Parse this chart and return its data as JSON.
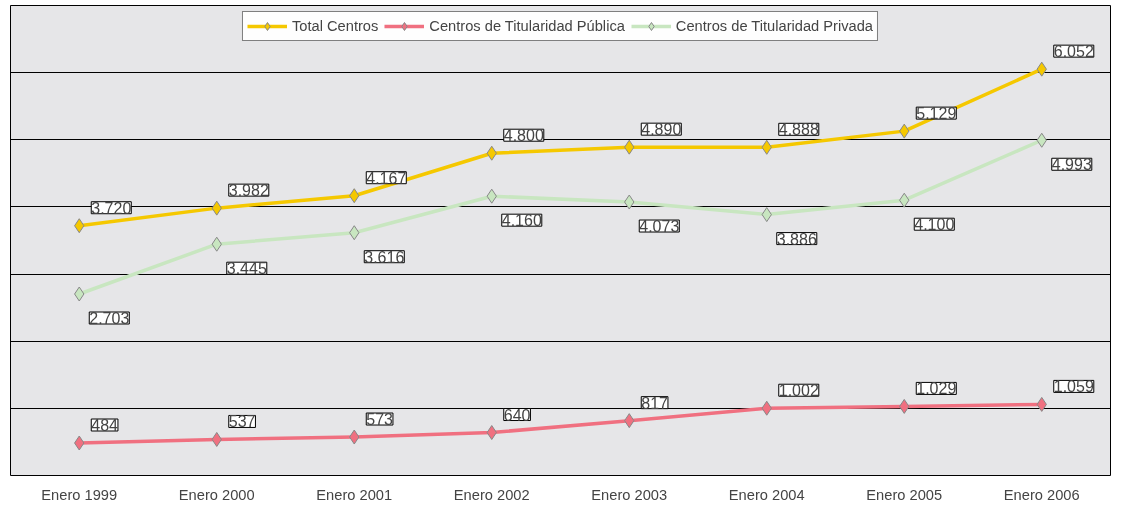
{
  "chart_data": {
    "type": "line",
    "categories": [
      "Enero 1999",
      "Enero 2000",
      "Enero 2001",
      "Enero 2002",
      "Enero 2003",
      "Enero 2004",
      "Enero 2005",
      "Enero 2006"
    ],
    "series": [
      {
        "name": "Total Centros",
        "color": "#f5c800",
        "values": [
          3720,
          3982,
          4167,
          4800,
          4890,
          4888,
          5129,
          6052
        ],
        "value_labels": [
          "3.720",
          "3.982",
          "4.167",
          "4.800",
          "4.890",
          "4.888",
          "5.129",
          "6.052"
        ]
      },
      {
        "name": "Centros de Titularidad Pública",
        "color": "#f07080",
        "values": [
          484,
          537,
          573,
          640,
          817,
          1002,
          1029,
          1059
        ],
        "value_labels": [
          "484",
          "537",
          "573",
          "640",
          "817",
          "1.002",
          "1.029",
          "1.059"
        ]
      },
      {
        "name": "Centros de Titularidad Privada",
        "color": "#c8e6c0",
        "values": [
          2703,
          3445,
          3616,
          4160,
          4073,
          3886,
          4100,
          4993
        ],
        "value_labels": [
          "2.703",
          "3.445",
          "3.616",
          "4.160",
          "4.073",
          "3.886",
          "4.100",
          "4.993"
        ]
      }
    ],
    "ylim": [
      0,
      7000
    ],
    "yticks": [
      {
        "value": 1000,
        "label": null
      },
      {
        "value": 2000,
        "label": null
      },
      {
        "value": 3000,
        "label": null
      },
      {
        "value": 4000,
        "label": null
      },
      {
        "value": 5000,
        "label": null
      },
      {
        "value": 6000,
        "label": null
      },
      {
        "value": 7000,
        "label": null
      }
    ],
    "tick_labels": "x",
    "grid": "y",
    "legend": "top",
    "marker": "diamond",
    "line_style": "solid"
  }
}
